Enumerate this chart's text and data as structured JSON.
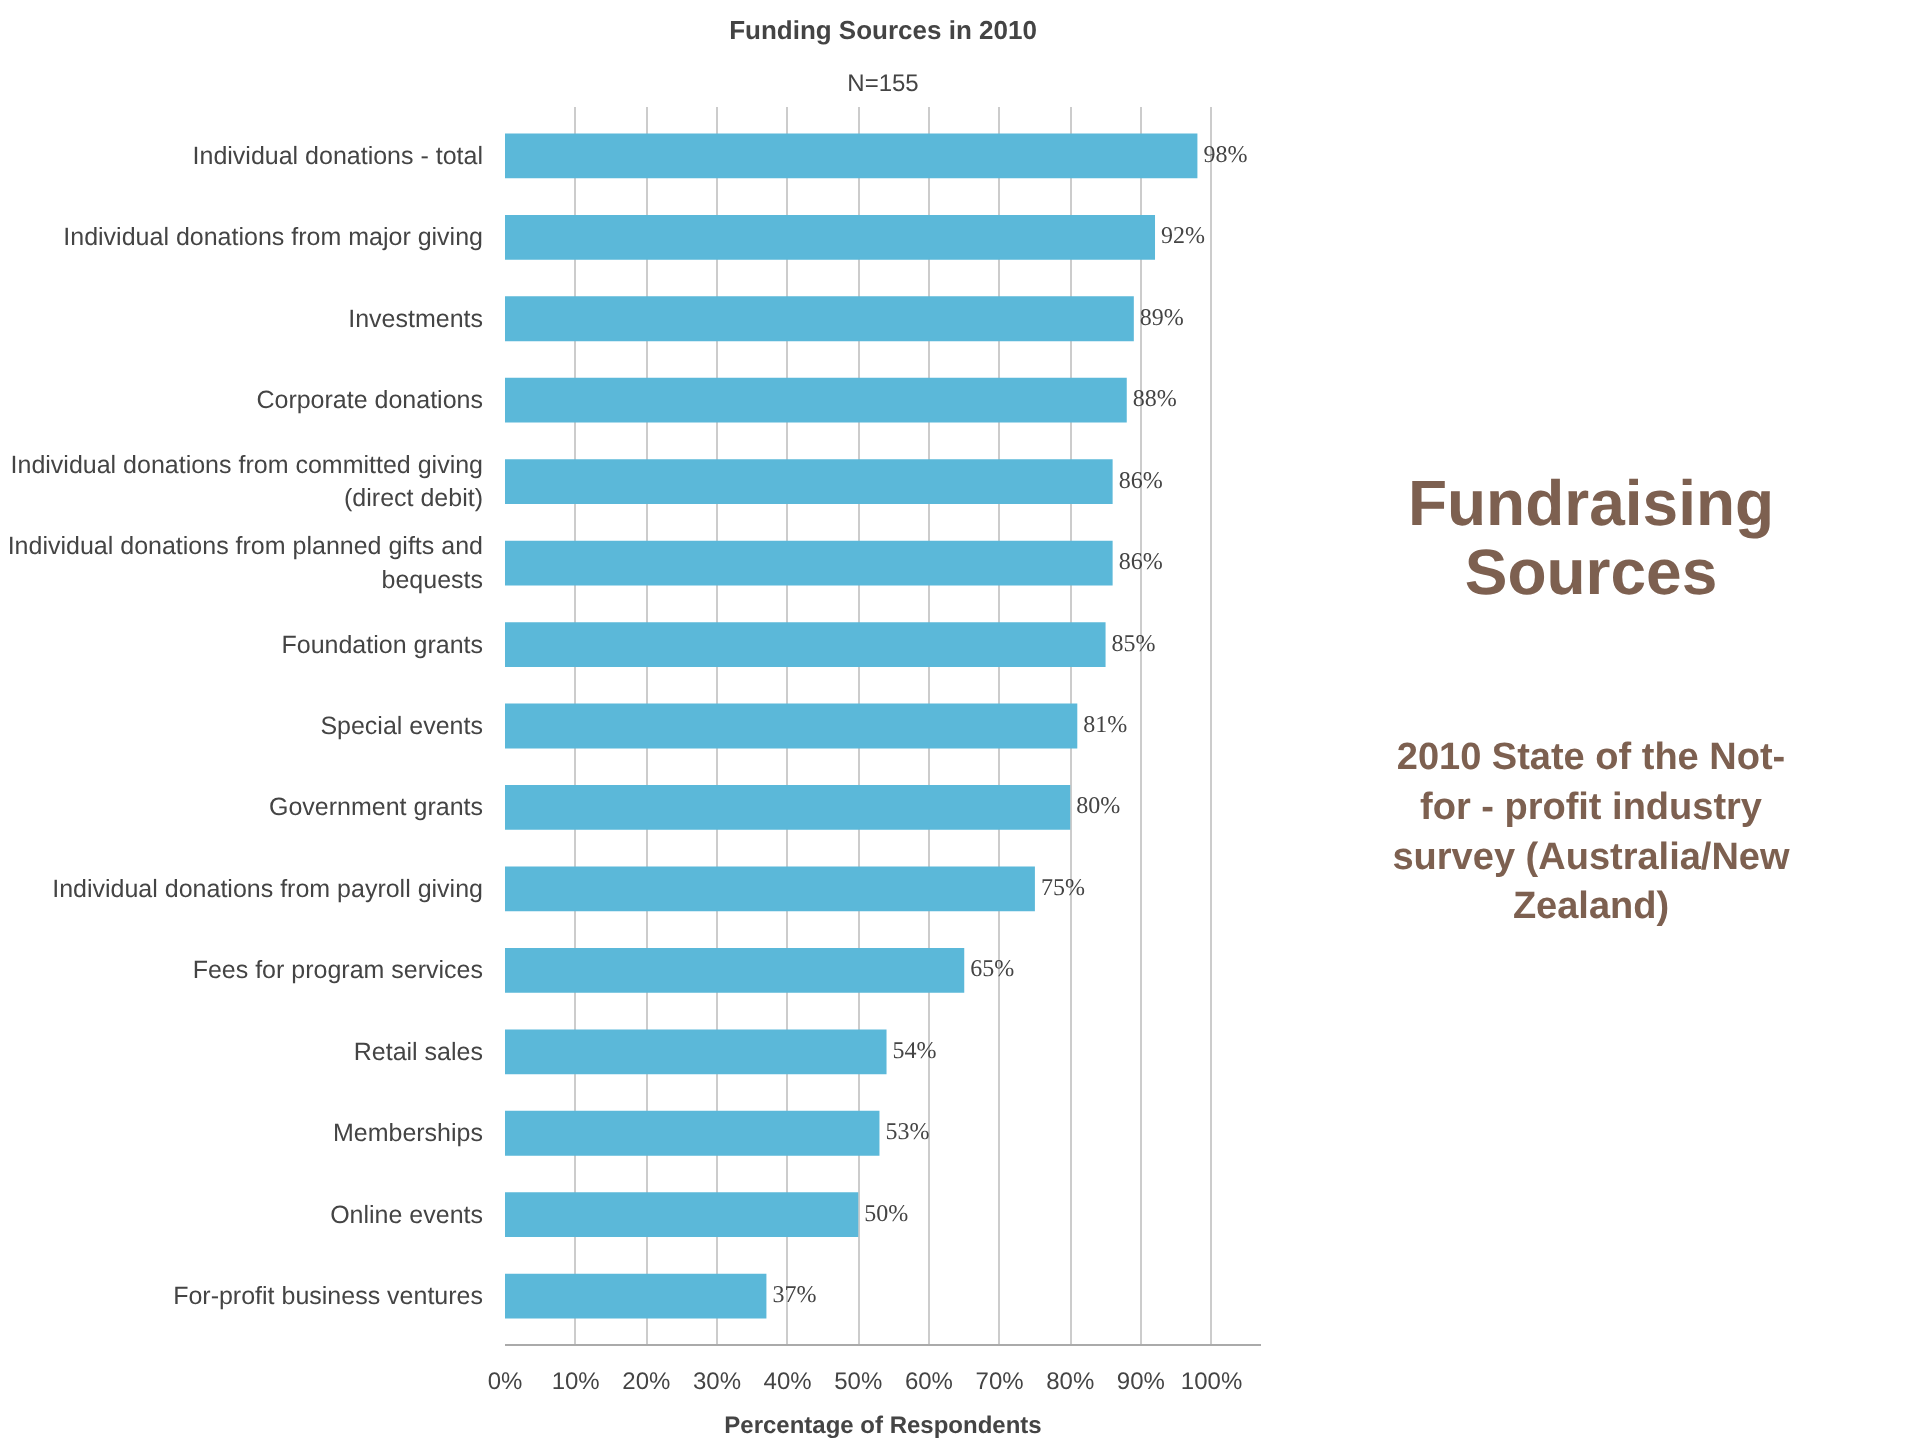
{
  "chart_data": {
    "type": "bar",
    "orientation": "horizontal",
    "title": "Funding Sources in 2010",
    "subtitle": "N=155",
    "xlabel": "Percentage of Respondents",
    "categories": [
      "Individual donations - total",
      "Individual donations from major giving",
      "Investments",
      "Corporate donations",
      "Individual donations from committed giving (direct debit)",
      "Individual donations from planned gifts and bequests",
      "Foundation grants",
      "Special events",
      "Government grants",
      "Individual donations from payroll giving",
      "Fees for program services",
      "Retail sales",
      "Memberships",
      "Online events",
      "For-profit business ventures"
    ],
    "values": [
      98,
      92,
      89,
      88,
      86,
      86,
      85,
      81,
      80,
      75,
      65,
      54,
      53,
      50,
      37
    ],
    "value_labels": [
      "98%",
      "92%",
      "89%",
      "88%",
      "86%",
      "86%",
      "85%",
      "81%",
      "80%",
      "75%",
      "65%",
      "54%",
      "53%",
      "50%",
      "37%"
    ],
    "color": "#5bb8d9",
    "xlim": [
      0,
      107
    ],
    "xticks": [
      {
        "value": 0,
        "label": "0%"
      },
      {
        "value": 10,
        "label": "10%"
      },
      {
        "value": 20,
        "label": "20%"
      },
      {
        "value": 30,
        "label": "30%"
      },
      {
        "value": 40,
        "label": "40%"
      },
      {
        "value": 50,
        "label": "50%"
      },
      {
        "value": 60,
        "label": "60%"
      },
      {
        "value": 70,
        "label": "70%"
      },
      {
        "value": 80,
        "label": "80%"
      },
      {
        "value": 90,
        "label": "90%"
      },
      {
        "value": 100,
        "label": "100%"
      }
    ],
    "grid": "x",
    "annotations": [
      "Fundraising Sources",
      "2010 State of the Not-for - profit industry survey (Australia/New Zealand)"
    ]
  }
}
